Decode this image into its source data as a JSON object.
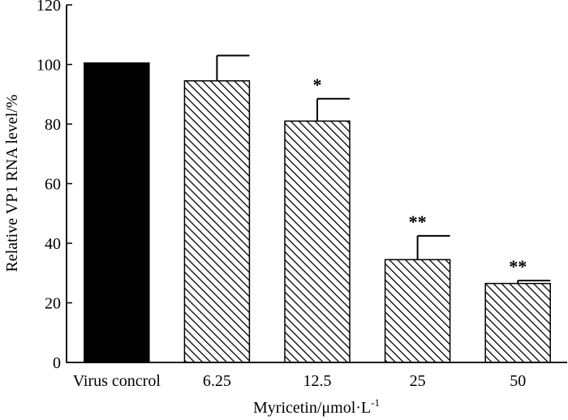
{
  "chart_data": {
    "type": "bar",
    "title": "",
    "xlabel": "Myricetin/μmol·L",
    "xlabel_superscript": "-1",
    "ylabel": "Relative VP1 RNA level/%",
    "ylim": [
      0,
      120
    ],
    "yticks": [
      "0",
      "20",
      "40",
      "60",
      "80",
      "100",
      "120"
    ],
    "categories": [
      "Virus concrol",
      "6.25",
      "12.5",
      "25",
      "50"
    ],
    "values": [
      100.5,
      94.5,
      81.0,
      34.5,
      26.5
    ],
    "errors": [
      0,
      8.5,
      7.5,
      8.0,
      1.0
    ],
    "significance": [
      "",
      "",
      "*",
      "**",
      "**"
    ],
    "fills": [
      "solid",
      "hatched",
      "hatched",
      "hatched",
      "hatched"
    ],
    "colors": {
      "bar": "#000000",
      "hatch": "#000000",
      "background": "#ffffff"
    },
    "grid": false
  }
}
